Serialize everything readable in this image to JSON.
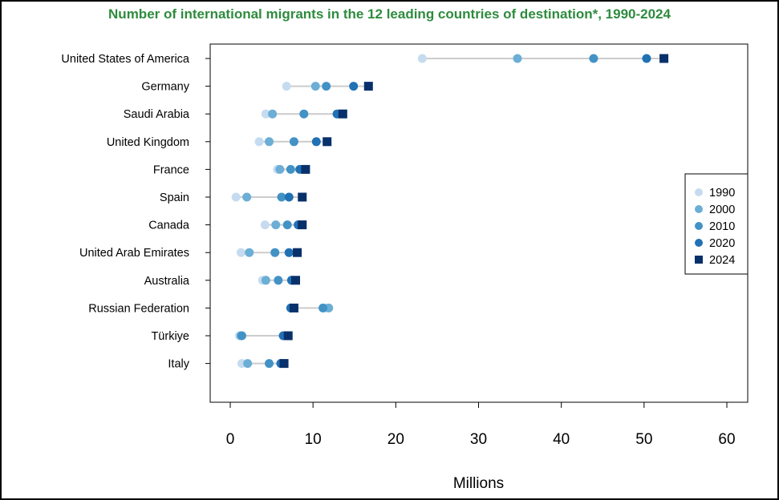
{
  "chart_data": {
    "type": "dot-plot",
    "title": "Number of international migrants in the 12 leading countries of destination*, 1990-2024",
    "xlabel": "Millions",
    "ylabel": "",
    "xlim": [
      0,
      60
    ],
    "xticks": [
      0,
      10,
      20,
      30,
      40,
      50,
      60
    ],
    "legend_position": "right",
    "categories": [
      "United States of America",
      "Germany",
      "Saudi Arabia",
      "United Kingdom",
      "France",
      "Spain",
      "Canada",
      "United Arab Emirates",
      "Australia",
      "Russian Federation",
      "Türkiye",
      "Italy"
    ],
    "series": [
      {
        "name": "1990",
        "color": "#c6dbef",
        "marker": "circle",
        "values": [
          23.2,
          6.8,
          4.3,
          3.5,
          5.7,
          0.7,
          4.2,
          1.3,
          3.9,
          11.5,
          1.1,
          1.4
        ]
      },
      {
        "name": "2000",
        "color": "#6baed6",
        "marker": "circle",
        "values": [
          34.7,
          10.3,
          5.1,
          4.7,
          6.0,
          2.0,
          5.5,
          2.3,
          4.3,
          11.9,
          1.3,
          2.1
        ]
      },
      {
        "name": "2010",
        "color": "#4292c6",
        "marker": "circle",
        "values": [
          43.9,
          11.6,
          8.9,
          7.7,
          7.3,
          6.2,
          6.9,
          5.4,
          5.8,
          11.2,
          1.4,
          4.7
        ]
      },
      {
        "name": "2020",
        "color": "#2171b5",
        "marker": "circle",
        "values": [
          50.3,
          14.9,
          12.9,
          10.4,
          8.4,
          7.1,
          8.2,
          7.1,
          7.4,
          7.3,
          6.4,
          6.1
        ]
      },
      {
        "name": "2024",
        "color": "#08306b",
        "marker": "square",
        "values": [
          52.4,
          16.7,
          13.6,
          11.7,
          9.1,
          8.7,
          8.7,
          8.1,
          7.9,
          7.7,
          7.0,
          6.5
        ]
      }
    ]
  }
}
